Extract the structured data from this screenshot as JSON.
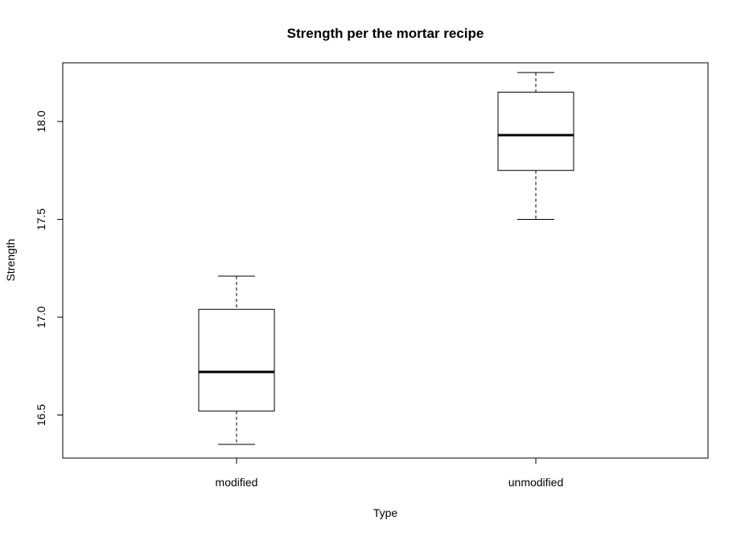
{
  "chart_data": {
    "type": "boxplot",
    "title": "Strength per the mortar recipe",
    "xlabel": "Type",
    "ylabel": "Strength",
    "categories": [
      "modified",
      "unmodified"
    ],
    "boxes": [
      {
        "category": "modified",
        "min": 16.35,
        "q1": 16.52,
        "median": 16.72,
        "q3": 17.04,
        "max": 17.21
      },
      {
        "category": "unmodified",
        "min": 17.5,
        "q1": 17.75,
        "median": 17.93,
        "q3": 18.15,
        "max": 18.25
      }
    ],
    "yticks": [
      16.5,
      17.0,
      17.5,
      18.0
    ],
    "ytick_labels": [
      "16.5",
      "17.0",
      "17.5",
      "18.0"
    ],
    "ylim": [
      16.28,
      18.3
    ],
    "grid": false,
    "legend": "none",
    "colors": {
      "box_fill": "#ffffff",
      "stroke": "#000000",
      "background": "#ffffff"
    }
  }
}
